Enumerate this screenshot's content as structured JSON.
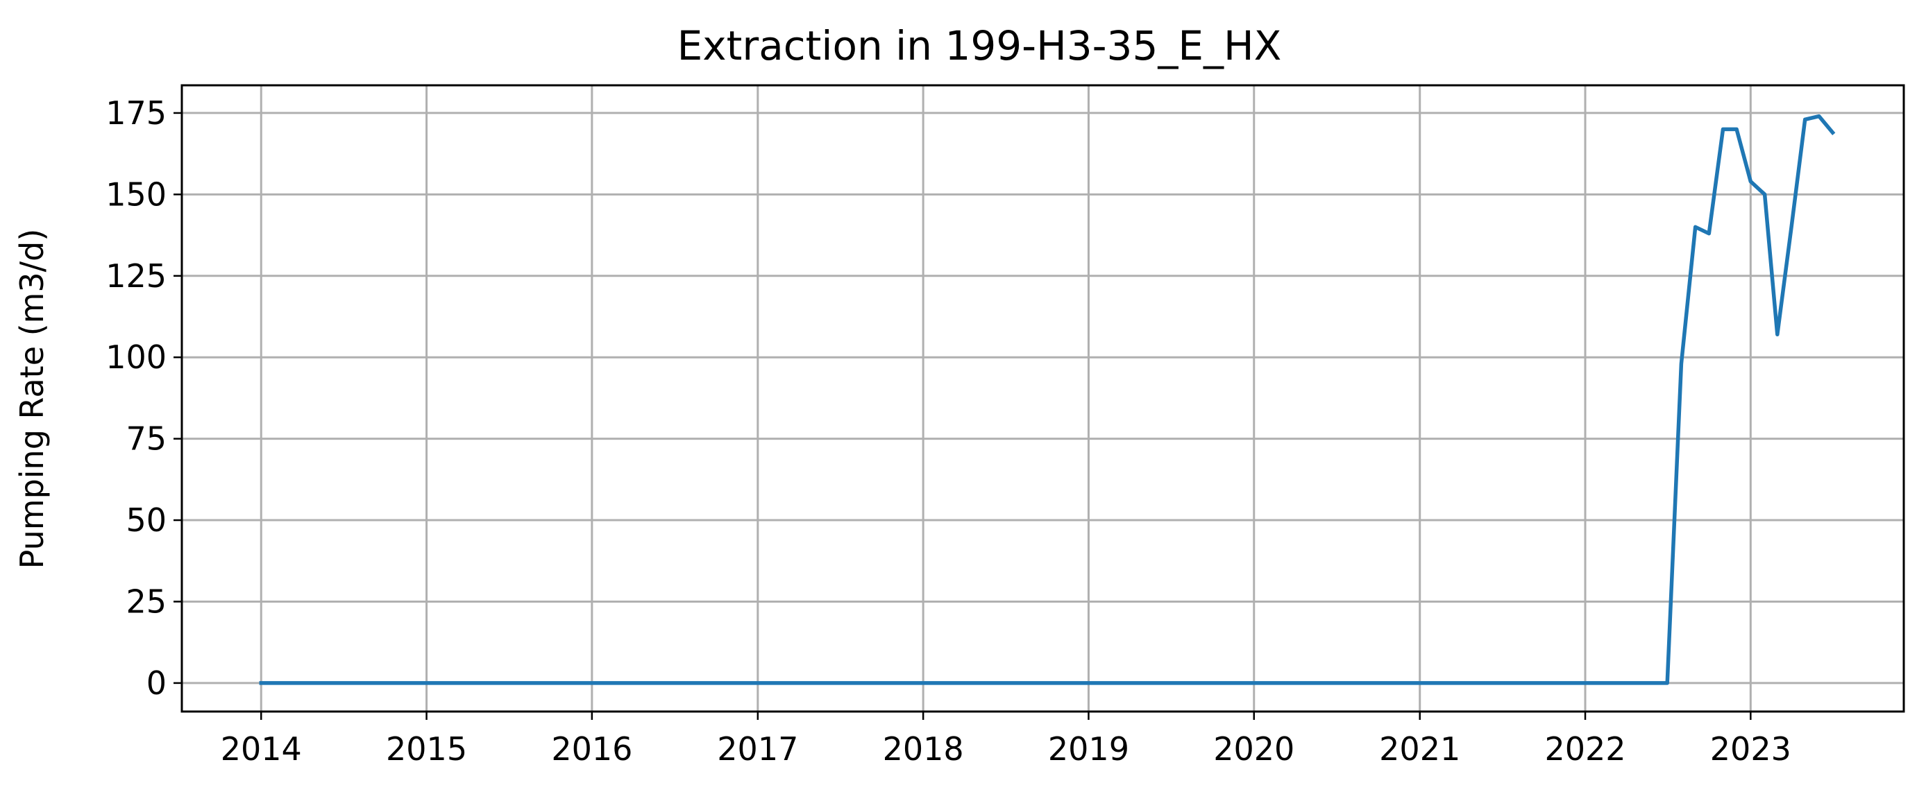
{
  "chart_data": {
    "type": "line",
    "title": "Extraction in 199-H3-35_E_HX",
    "xlabel": "",
    "ylabel": "Pumping Rate (m3/d)",
    "xlim": [
      "2013-07-10",
      "2023-12-05"
    ],
    "ylim": [
      -8.75,
      183.5
    ],
    "x_ticks": [
      "2014",
      "2015",
      "2016",
      "2017",
      "2018",
      "2019",
      "2020",
      "2021",
      "2022",
      "2023"
    ],
    "y_ticks": [
      0,
      25,
      50,
      75,
      100,
      125,
      150,
      175
    ],
    "grid": true,
    "series_color": "#1f77b4",
    "series": [
      {
        "x": [
          "2014-01-01",
          "2022-07-01",
          "2022-08-01",
          "2022-09-01",
          "2022-10-01",
          "2022-11-01",
          "2022-12-01",
          "2023-01-01",
          "2023-02-01",
          "2023-03-01",
          "2023-04-01",
          "2023-05-01",
          "2023-06-01",
          "2023-07-01"
        ],
        "values": [
          0,
          0,
          98,
          140,
          138,
          170,
          170,
          154,
          150,
          107,
          140,
          173,
          174,
          169
        ]
      }
    ]
  }
}
